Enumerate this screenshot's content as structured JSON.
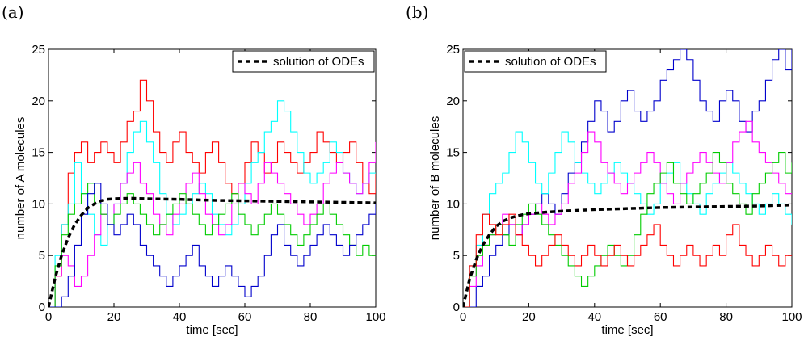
{
  "chart_data": [
    {
      "type": "line",
      "panel_label": "(a)",
      "xlabel": "time [sec]",
      "ylabel": "number of A molecules",
      "xlim": [
        0,
        100
      ],
      "ylim": [
        0,
        25
      ],
      "xticks": [
        0,
        20,
        40,
        60,
        80,
        100
      ],
      "yticks": [
        0,
        5,
        10,
        15,
        20,
        25
      ],
      "legend_position": "top-right",
      "ode_series": {
        "name": "solution of ODEs",
        "color": "#000000",
        "x": [
          0,
          2,
          4,
          6,
          8,
          10,
          12,
          14,
          16,
          18,
          20,
          25,
          30,
          40,
          50,
          60,
          70,
          80,
          90,
          100
        ],
        "values": [
          0,
          2.8,
          5.0,
          6.7,
          8.0,
          8.9,
          9.6,
          10.0,
          10.3,
          10.45,
          10.5,
          10.55,
          10.5,
          10.45,
          10.35,
          10.3,
          10.25,
          10.2,
          10.15,
          10.1
        ]
      },
      "series": [
        {
          "color": "#ff0000",
          "x": [
            0,
            2,
            4,
            6,
            8,
            10,
            12,
            14,
            16,
            18,
            20,
            22,
            24,
            26,
            28,
            30,
            32,
            34,
            36,
            38,
            40,
            42,
            44,
            46,
            48,
            50,
            52,
            54,
            56,
            58,
            60,
            62,
            64,
            66,
            68,
            70,
            72,
            74,
            76,
            78,
            80,
            82,
            84,
            86,
            88,
            90,
            92,
            94,
            96,
            98,
            100
          ],
          "values": [
            0,
            3,
            8,
            13,
            15,
            16,
            14,
            15,
            16,
            15,
            14,
            16,
            18,
            19,
            22,
            20,
            17,
            15,
            14,
            16,
            17,
            15,
            14,
            13,
            15,
            16,
            14,
            12,
            11,
            12,
            14,
            16,
            15,
            13,
            14,
            16,
            15,
            14,
            13,
            14,
            15,
            17,
            16,
            15,
            14,
            15,
            16,
            14,
            12,
            11,
            13
          ]
        },
        {
          "color": "#00ffff",
          "x": [
            0,
            2,
            4,
            6,
            8,
            10,
            12,
            14,
            16,
            18,
            20,
            22,
            24,
            26,
            28,
            30,
            32,
            34,
            36,
            38,
            40,
            42,
            44,
            46,
            48,
            50,
            52,
            54,
            56,
            58,
            60,
            62,
            64,
            66,
            68,
            70,
            72,
            74,
            76,
            78,
            80,
            82,
            84,
            86,
            88,
            90,
            92,
            94,
            96,
            98,
            100
          ],
          "values": [
            0,
            5,
            8,
            10,
            14,
            11,
            9,
            7,
            6,
            8,
            10,
            12,
            15,
            17,
            18,
            16,
            14,
            11,
            9,
            8,
            9,
            10,
            11,
            12,
            11,
            9,
            8,
            7,
            8,
            10,
            12,
            14,
            15,
            17,
            18,
            20,
            19,
            17,
            15,
            13,
            12,
            13,
            14,
            16,
            15,
            13,
            12,
            11,
            12,
            13,
            13
          ]
        },
        {
          "color": "#ff00ff",
          "x": [
            0,
            2,
            4,
            6,
            8,
            10,
            12,
            14,
            16,
            18,
            20,
            22,
            24,
            26,
            28,
            30,
            32,
            34,
            36,
            38,
            40,
            42,
            44,
            46,
            48,
            50,
            52,
            54,
            56,
            58,
            60,
            62,
            64,
            66,
            68,
            70,
            72,
            74,
            76,
            78,
            80,
            82,
            84,
            86,
            88,
            90,
            92,
            94,
            96,
            98,
            100
          ],
          "values": [
            0,
            3,
            5,
            4,
            2,
            3,
            5,
            7,
            9,
            8,
            10,
            12,
            13,
            14,
            12,
            11,
            9,
            8,
            7,
            9,
            10,
            12,
            13,
            11,
            9,
            8,
            7,
            8,
            10,
            12,
            11,
            10,
            12,
            14,
            13,
            12,
            11,
            10,
            9,
            8,
            9,
            10,
            12,
            13,
            14,
            13,
            12,
            11,
            12,
            14,
            16
          ]
        },
        {
          "color": "#00cc00",
          "x": [
            0,
            2,
            4,
            6,
            8,
            10,
            12,
            14,
            16,
            18,
            20,
            22,
            24,
            26,
            28,
            30,
            32,
            34,
            36,
            38,
            40,
            42,
            44,
            46,
            48,
            50,
            52,
            54,
            56,
            58,
            60,
            62,
            64,
            66,
            68,
            70,
            72,
            74,
            76,
            78,
            80,
            82,
            84,
            86,
            88,
            90,
            92,
            94,
            96,
            98,
            100
          ],
          "values": [
            0,
            4,
            7,
            9,
            10,
            11,
            12,
            10,
            9,
            8,
            9,
            10,
            11,
            10,
            9,
            8,
            7,
            8,
            9,
            10,
            11,
            10,
            9,
            8,
            7,
            8,
            9,
            10,
            11,
            9,
            8,
            7,
            8,
            9,
            10,
            9,
            8,
            7,
            6,
            7,
            8,
            9,
            10,
            9,
            8,
            7,
            6,
            5,
            6,
            5,
            5
          ]
        },
        {
          "color": "#0000cc",
          "x": [
            0,
            2,
            4,
            6,
            8,
            10,
            12,
            14,
            16,
            18,
            20,
            22,
            24,
            26,
            28,
            30,
            32,
            34,
            36,
            38,
            40,
            42,
            44,
            46,
            48,
            50,
            52,
            54,
            56,
            58,
            60,
            62,
            64,
            66,
            68,
            70,
            72,
            74,
            76,
            78,
            80,
            82,
            84,
            86,
            88,
            90,
            92,
            94,
            96,
            98,
            100
          ],
          "values": [
            0,
            0,
            1,
            3,
            6,
            9,
            11,
            12,
            10,
            8,
            7,
            8,
            9,
            8,
            6,
            5,
            4,
            3,
            2,
            3,
            4,
            5,
            6,
            4,
            3,
            2,
            3,
            4,
            3,
            2,
            1,
            2,
            3,
            5,
            7,
            8,
            6,
            5,
            4,
            5,
            6,
            7,
            8,
            7,
            6,
            5,
            6,
            7,
            8,
            9,
            10
          ]
        }
      ]
    },
    {
      "type": "line",
      "panel_label": "(b)",
      "xlabel": "time [sec]",
      "ylabel": "number of B molecules",
      "xlim": [
        0,
        100
      ],
      "ylim": [
        0,
        25
      ],
      "xticks": [
        0,
        20,
        40,
        60,
        80,
        100
      ],
      "yticks": [
        0,
        5,
        10,
        15,
        20,
        25
      ],
      "legend_position": "top-left",
      "ode_series": {
        "name": "solution of ODEs",
        "color": "#000000",
        "x": [
          0,
          2,
          4,
          6,
          8,
          10,
          12,
          14,
          16,
          18,
          20,
          25,
          30,
          40,
          50,
          60,
          70,
          80,
          90,
          100
        ],
        "values": [
          0,
          2.7,
          4.6,
          6.0,
          7.0,
          7.8,
          8.3,
          8.6,
          8.8,
          8.95,
          9.05,
          9.2,
          9.3,
          9.45,
          9.55,
          9.65,
          9.7,
          9.75,
          9.8,
          9.9
        ]
      },
      "series": [
        {
          "color": "#0000cc",
          "x": [
            0,
            2,
            4,
            6,
            8,
            10,
            12,
            14,
            16,
            18,
            20,
            22,
            24,
            26,
            28,
            30,
            32,
            34,
            36,
            38,
            40,
            42,
            44,
            46,
            48,
            50,
            52,
            54,
            56,
            58,
            60,
            62,
            64,
            66,
            68,
            70,
            72,
            74,
            76,
            78,
            80,
            82,
            84,
            86,
            88,
            90,
            92,
            94,
            96,
            98,
            100
          ],
          "values": [
            0,
            0,
            2,
            3,
            5,
            6,
            7,
            8,
            7,
            8,
            9,
            10,
            11,
            10,
            9,
            11,
            13,
            14,
            16,
            18,
            20,
            19,
            17,
            18,
            20,
            21,
            19,
            18,
            19,
            20,
            22,
            23,
            24,
            25,
            24,
            22,
            20,
            19,
            18,
            20,
            21,
            20,
            18,
            17,
            19,
            20,
            22,
            24,
            25,
            23,
            25
          ]
        },
        {
          "color": "#00ffff",
          "x": [
            0,
            2,
            4,
            6,
            8,
            10,
            12,
            14,
            16,
            18,
            20,
            22,
            24,
            26,
            28,
            30,
            32,
            34,
            36,
            38,
            40,
            42,
            44,
            46,
            48,
            50,
            52,
            54,
            56,
            58,
            60,
            62,
            64,
            66,
            68,
            70,
            72,
            74,
            76,
            78,
            80,
            82,
            84,
            86,
            88,
            90,
            92,
            94,
            96,
            98,
            100
          ],
          "values": [
            0,
            4,
            6,
            9,
            11,
            12,
            13,
            15,
            17,
            16,
            14,
            12,
            11,
            13,
            15,
            17,
            16,
            14,
            13,
            12,
            11,
            12,
            13,
            14,
            13,
            12,
            11,
            10,
            9,
            10,
            12,
            13,
            14,
            12,
            11,
            10,
            9,
            11,
            12,
            13,
            14,
            13,
            12,
            11,
            10,
            9,
            10,
            11,
            10,
            9,
            8
          ]
        },
        {
          "color": "#ff00ff",
          "x": [
            0,
            2,
            4,
            6,
            8,
            10,
            12,
            14,
            16,
            18,
            20,
            22,
            24,
            26,
            28,
            30,
            32,
            34,
            36,
            38,
            40,
            42,
            44,
            46,
            48,
            50,
            52,
            54,
            56,
            58,
            60,
            62,
            64,
            66,
            68,
            70,
            72,
            74,
            76,
            78,
            80,
            82,
            84,
            86,
            88,
            90,
            92,
            94,
            96,
            98,
            100
          ],
          "values": [
            0,
            2,
            4,
            6,
            7,
            8,
            9,
            8,
            7,
            8,
            9,
            10,
            9,
            8,
            9,
            10,
            12,
            13,
            15,
            17,
            16,
            14,
            13,
            12,
            11,
            12,
            13,
            14,
            15,
            14,
            12,
            11,
            10,
            12,
            13,
            14,
            15,
            14,
            13,
            12,
            14,
            16,
            17,
            18,
            16,
            15,
            14,
            13,
            12,
            11,
            11
          ]
        },
        {
          "color": "#00cc00",
          "x": [
            0,
            2,
            4,
            6,
            8,
            10,
            12,
            14,
            16,
            18,
            20,
            22,
            24,
            26,
            28,
            30,
            32,
            34,
            36,
            38,
            40,
            42,
            44,
            46,
            48,
            50,
            52,
            54,
            56,
            58,
            60,
            62,
            64,
            66,
            68,
            70,
            72,
            74,
            76,
            78,
            80,
            82,
            84,
            86,
            88,
            90,
            92,
            94,
            96,
            98,
            100
          ],
          "values": [
            0,
            3,
            5,
            6,
            7,
            8,
            7,
            6,
            8,
            9,
            10,
            9,
            8,
            7,
            6,
            5,
            4,
            3,
            2,
            3,
            4,
            5,
            6,
            5,
            4,
            5,
            7,
            9,
            11,
            12,
            13,
            14,
            12,
            11,
            10,
            11,
            12,
            13,
            15,
            14,
            12,
            11,
            10,
            9,
            11,
            12,
            13,
            14,
            15,
            13,
            14
          ]
        },
        {
          "color": "#ff0000",
          "x": [
            0,
            2,
            4,
            6,
            8,
            10,
            12,
            14,
            16,
            18,
            20,
            22,
            24,
            26,
            28,
            30,
            32,
            34,
            36,
            38,
            40,
            42,
            44,
            46,
            48,
            50,
            52,
            54,
            56,
            58,
            60,
            62,
            64,
            66,
            68,
            70,
            72,
            74,
            76,
            78,
            80,
            82,
            84,
            86,
            88,
            90,
            92,
            94,
            96,
            98,
            100
          ],
          "values": [
            0,
            4,
            7,
            9,
            8,
            7,
            8,
            9,
            7,
            6,
            5,
            4,
            5,
            6,
            7,
            6,
            5,
            4,
            5,
            6,
            5,
            4,
            5,
            6,
            5,
            4,
            5,
            6,
            7,
            8,
            6,
            5,
            4,
            5,
            6,
            5,
            4,
            5,
            6,
            5,
            7,
            8,
            6,
            5,
            4,
            5,
            6,
            5,
            4,
            5,
            5
          ]
        }
      ]
    }
  ]
}
